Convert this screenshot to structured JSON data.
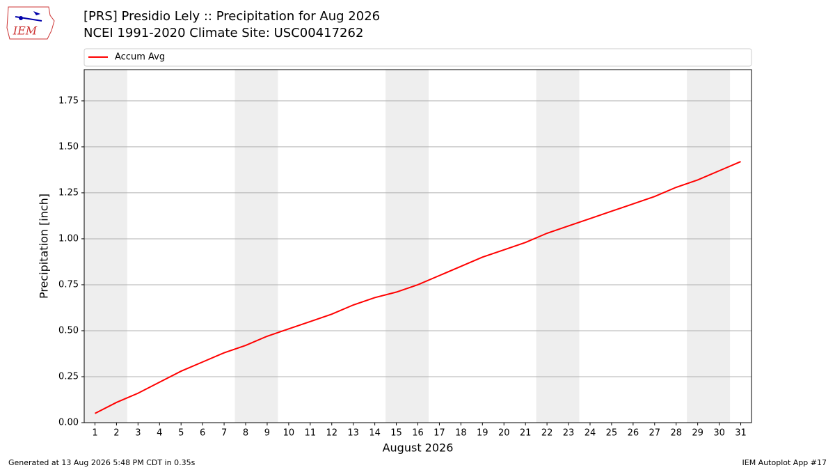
{
  "logo_text": "IEM",
  "footer_left": "Generated at 13 Aug 2026 5:48 PM CDT in 0.35s",
  "footer_right": "IEM Autoplot App #17",
  "chart_data": {
    "type": "line",
    "title": "[PRS] Presidio Lely :: Precipitation for Aug 2026",
    "subtitle": "NCEI 1991-2020 Climate Site: USC00417262",
    "x_label": "August 2026",
    "y_label": "Precipitation [inch]",
    "x": [
      1,
      2,
      3,
      4,
      5,
      6,
      7,
      8,
      9,
      10,
      11,
      12,
      13,
      14,
      15,
      16,
      17,
      18,
      19,
      20,
      21,
      22,
      23,
      24,
      25,
      26,
      27,
      28,
      29,
      30,
      31
    ],
    "series": [
      {
        "name": "Accum Avg",
        "color": "#ff0000",
        "values": [
          0.05,
          0.11,
          0.16,
          0.22,
          0.28,
          0.33,
          0.38,
          0.42,
          0.47,
          0.51,
          0.55,
          0.59,
          0.64,
          0.68,
          0.71,
          0.75,
          0.8,
          0.85,
          0.9,
          0.94,
          0.98,
          1.03,
          1.07,
          1.11,
          1.15,
          1.19,
          1.23,
          1.28,
          1.32,
          1.37,
          1.42
        ]
      }
    ],
    "shaded_bands": [
      [
        0.5,
        2.5
      ],
      [
        7.5,
        9.5
      ],
      [
        14.5,
        16.5
      ],
      [
        21.5,
        23.5
      ],
      [
        28.5,
        30.5
      ]
    ],
    "shade_color": "#eeeeee",
    "xlim": [
      0.5,
      31.5
    ],
    "xticks": [
      1,
      2,
      3,
      4,
      5,
      6,
      7,
      8,
      9,
      10,
      11,
      12,
      13,
      14,
      15,
      16,
      17,
      18,
      19,
      20,
      21,
      22,
      23,
      24,
      25,
      26,
      27,
      28,
      29,
      30,
      31
    ],
    "ylim": [
      0,
      1.92
    ],
    "yticks": [
      {
        "value": 0,
        "label": "0.00"
      },
      {
        "value": 0.25,
        "label": "0.25"
      },
      {
        "value": 0.5,
        "label": "0.50"
      },
      {
        "value": 0.75,
        "label": "0.75"
      },
      {
        "value": 1,
        "label": "1.00"
      },
      {
        "value": 1.25,
        "label": "1.25"
      },
      {
        "value": 1.5,
        "label": "1.50"
      },
      {
        "value": 1.75,
        "label": "1.75"
      }
    ],
    "grid": "y",
    "legend": "top"
  }
}
